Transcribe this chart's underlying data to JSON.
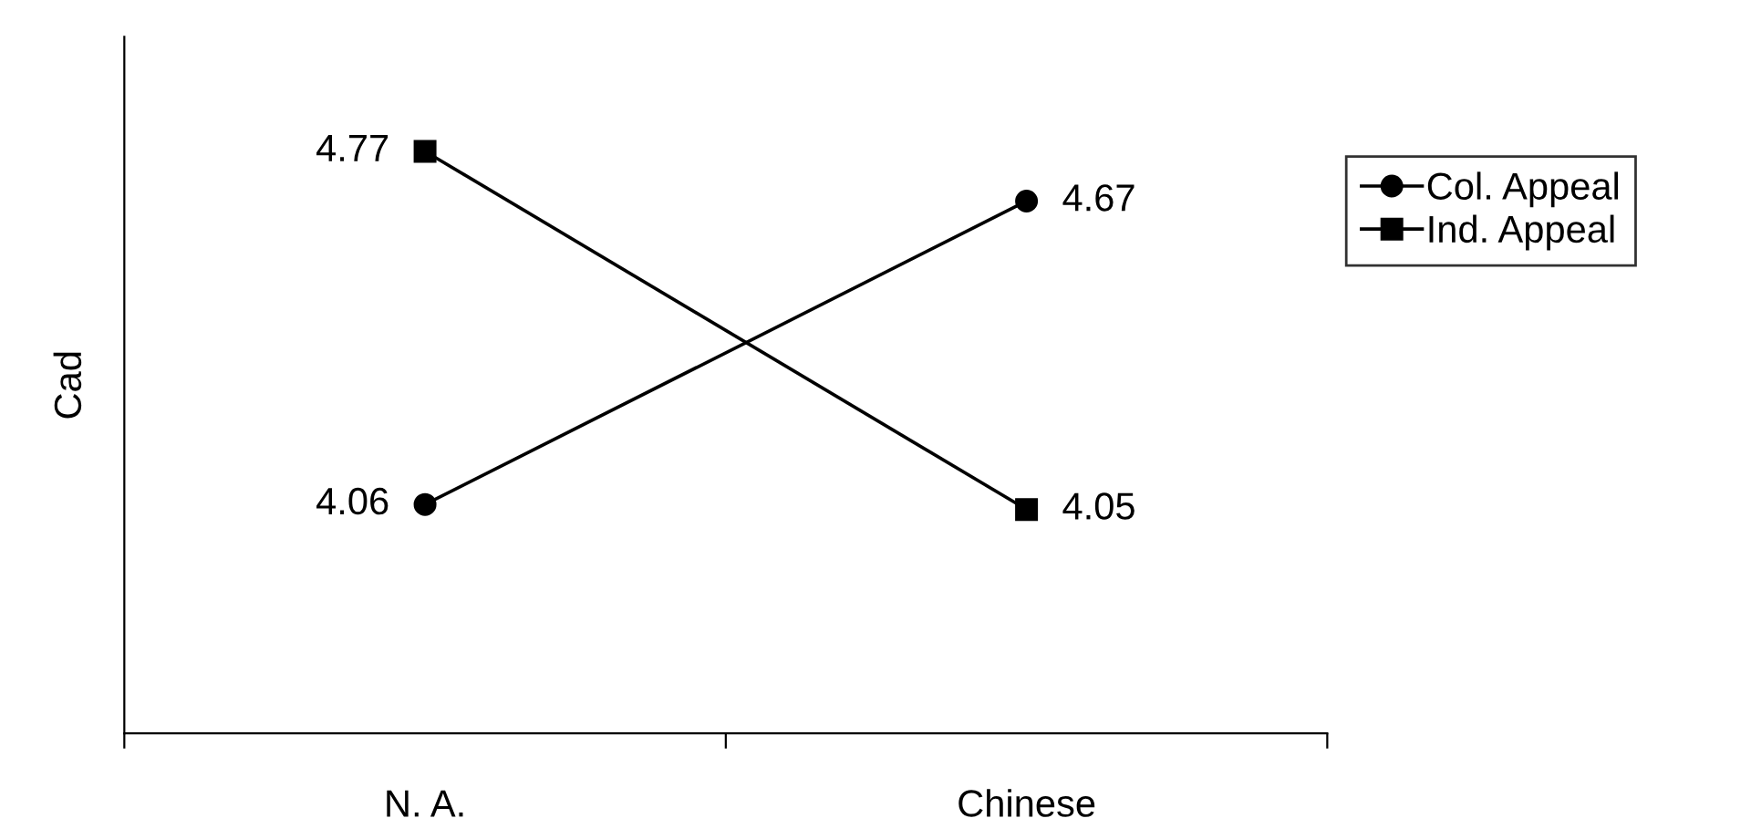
{
  "chart_data": {
    "type": "line",
    "ylabel": "Cad",
    "categories": [
      "N. A.",
      "Chinese"
    ],
    "series": [
      {
        "name": "Col. Appeal",
        "color": "#000000",
        "marker": "circle",
        "values": [
          4.06,
          4.67
        ]
      },
      {
        "name": "Ind. Appeal",
        "color": "#000000",
        "marker": "square",
        "values": [
          4.77,
          4.05
        ]
      }
    ],
    "ylim": [
      3.6,
      5.0
    ],
    "tick_labels": "x",
    "data_labels": true,
    "legend": "right",
    "grid": false
  }
}
